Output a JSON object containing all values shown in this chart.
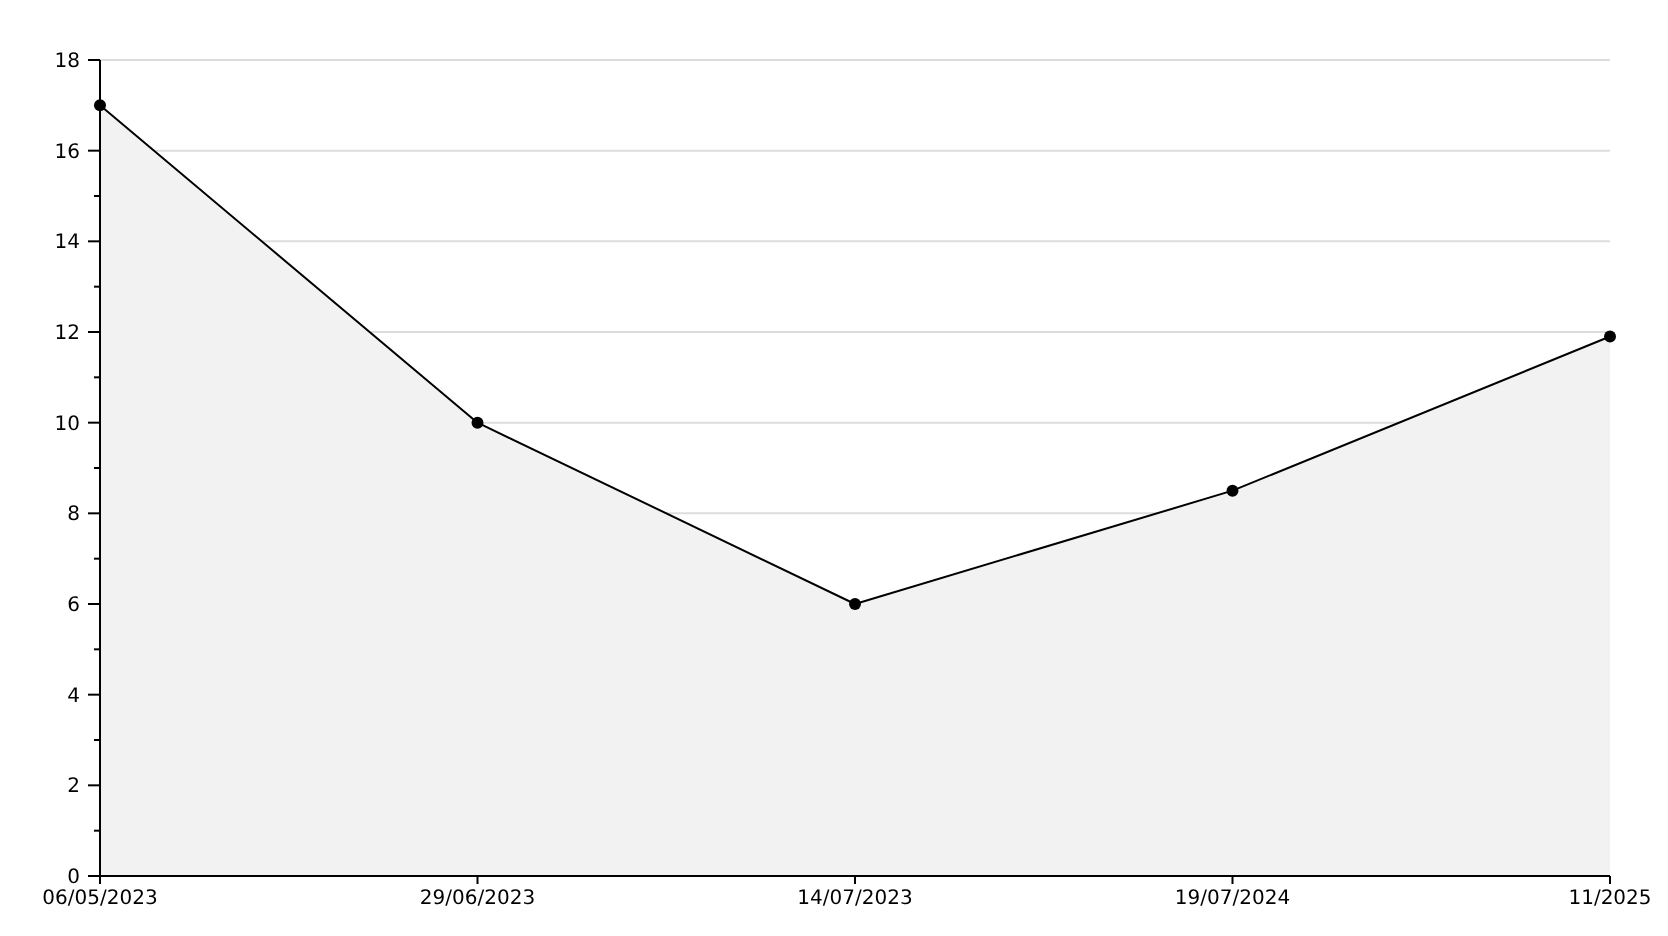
{
  "chart_data": {
    "type": "area",
    "categories": [
      "06/05/2023",
      "29/06/2023",
      "14/07/2023",
      "19/07/2024",
      "11/2025"
    ],
    "series": [
      {
        "color": "#000000",
        "values": [
          17,
          10,
          6,
          8.5,
          11.9
        ]
      }
    ],
    "ylim": [
      0,
      18
    ],
    "yticks": [
      0,
      {
        "value": 1,
        "label": null
      },
      2,
      {
        "value": 3,
        "label": null
      },
      4,
      {
        "value": 5,
        "label": null
      },
      6,
      {
        "value": 7,
        "label": null
      },
      8,
      {
        "value": 9,
        "label": null
      },
      10,
      {
        "value": 11,
        "label": null
      },
      12,
      {
        "value": 13,
        "label": null
      },
      14,
      {
        "value": 15,
        "label": null
      },
      16,
      {
        "value": 17,
        "label": null
      },
      18
    ],
    "grid": "y",
    "marker": "circle",
    "line_style": "solid"
  }
}
